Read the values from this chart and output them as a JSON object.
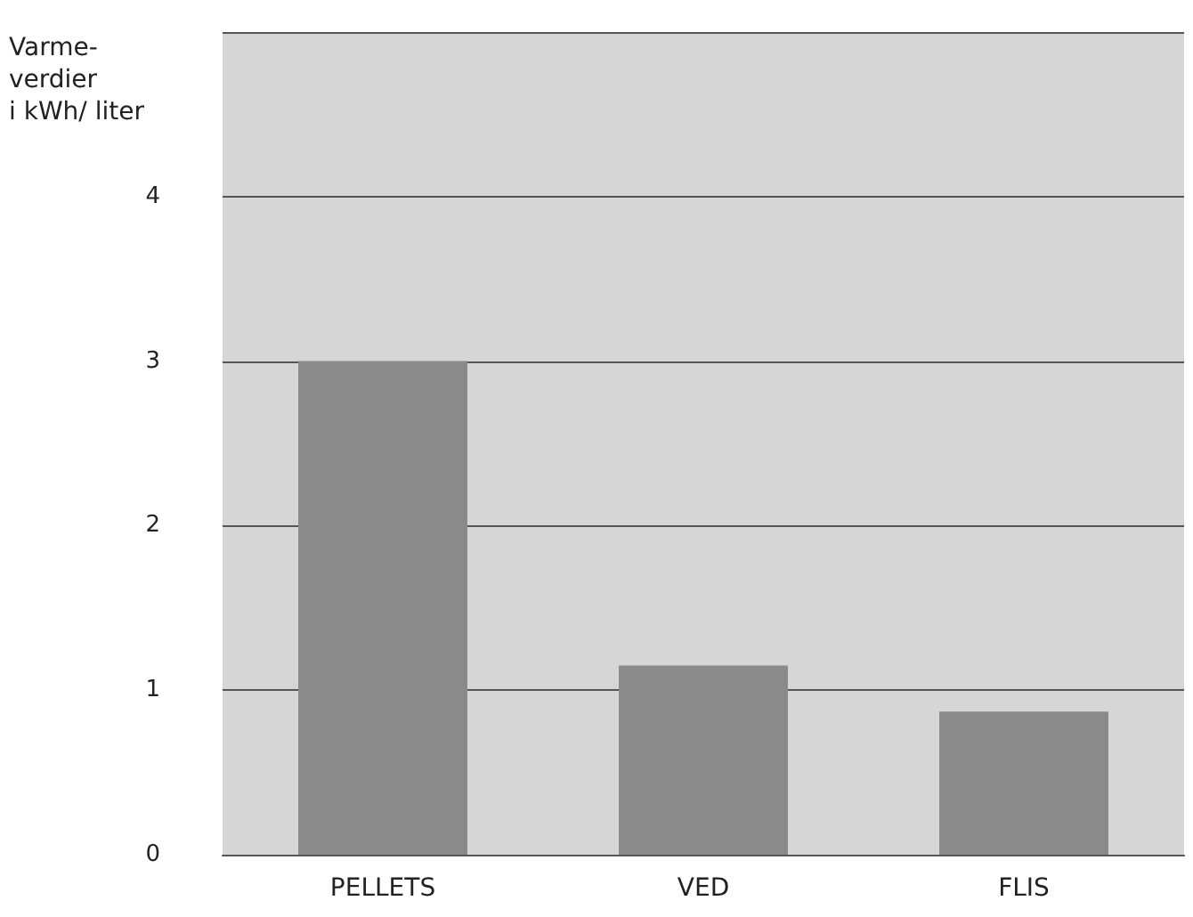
{
  "chart_data": {
    "type": "bar",
    "ylabel": "Varme-\nverdier\ni kWh/ liter",
    "categories": [
      "PELLETS",
      "VED",
      "FLIS"
    ],
    "values": [
      3,
      1.15,
      0.87
    ],
    "color": "#8a8a8a",
    "ylim": [
      0,
      5
    ],
    "yticks": [
      0,
      1,
      2,
      3,
      4
    ],
    "grid": "y"
  }
}
